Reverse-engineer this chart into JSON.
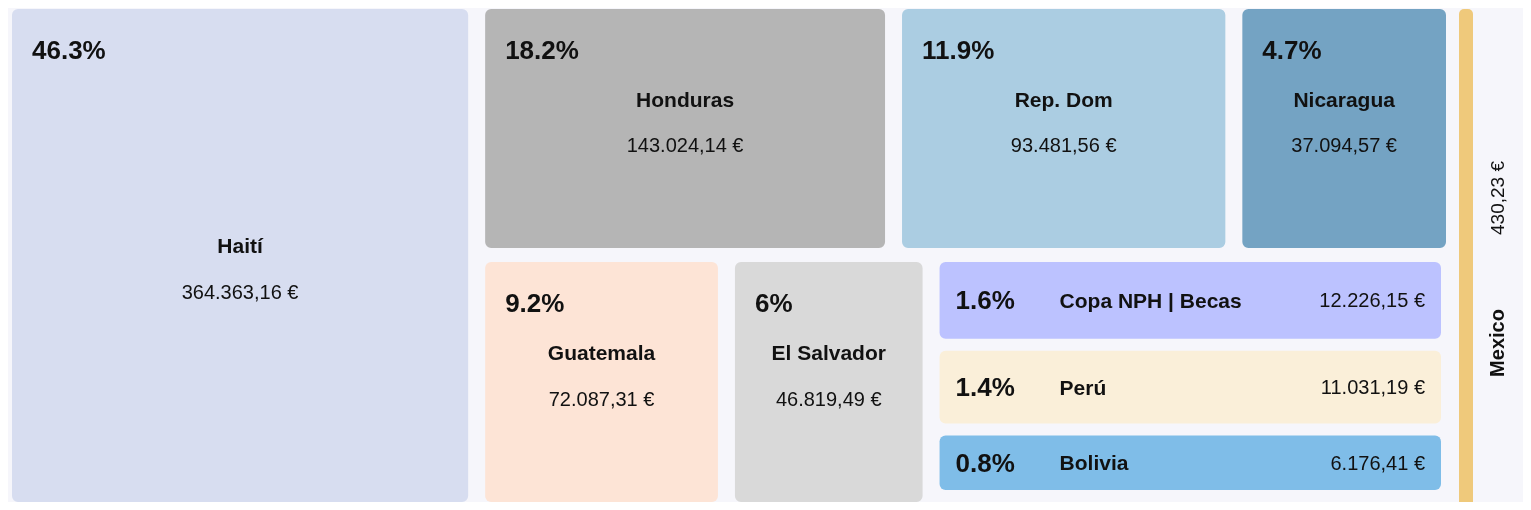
{
  "chart_data": {
    "type": "other",
    "categories": [
      "Haití",
      "Honduras",
      "Rep. Dom",
      "Nicaragua",
      "Guatemala",
      "El Salvador",
      "Copa NPH | Becas",
      "Perú",
      "Bolivia",
      "Mexico"
    ],
    "values": [
      364363.16,
      143024.14,
      93481.56,
      37094.57,
      72087.31,
      46819.49,
      12226.15,
      11031.19,
      6176.41,
      430.23
    ],
    "value_labels": [
      "364.363,16 €",
      "143.024,14 €",
      "93.481,56 €",
      "37.094,57 €",
      "72.087,31 €",
      "46.819,49 €",
      "12.226,15 €",
      "11.031,19 €",
      "6.176,41 €",
      "430,23 €"
    ],
    "colors": [
      "#d7ddf0",
      "#b5b5b5",
      "#abcde2",
      "#74a3c3",
      "#fde4d6",
      "#d9d9d9",
      "#bcc2ff",
      "#faefd9",
      "#7fbde8",
      "#efc97b"
    ],
    "annotations": [
      {
        "text": "46.3%",
        "x": "Haití"
      },
      {
        "text": "18.2%",
        "x": "Honduras"
      },
      {
        "text": "11.9%",
        "x": "Rep. Dom"
      },
      {
        "text": "4.7%",
        "x": "Nicaragua"
      },
      {
        "text": "9.2%",
        "x": "Guatemala"
      },
      {
        "text": "6%",
        "x": "El Salvador"
      },
      {
        "text": "1.6%",
        "x": "Copa NPH | Becas"
      },
      {
        "text": "1.4%",
        "x": "Perú"
      },
      {
        "text": "0.8%",
        "x": "Bolivia"
      }
    ]
  }
}
